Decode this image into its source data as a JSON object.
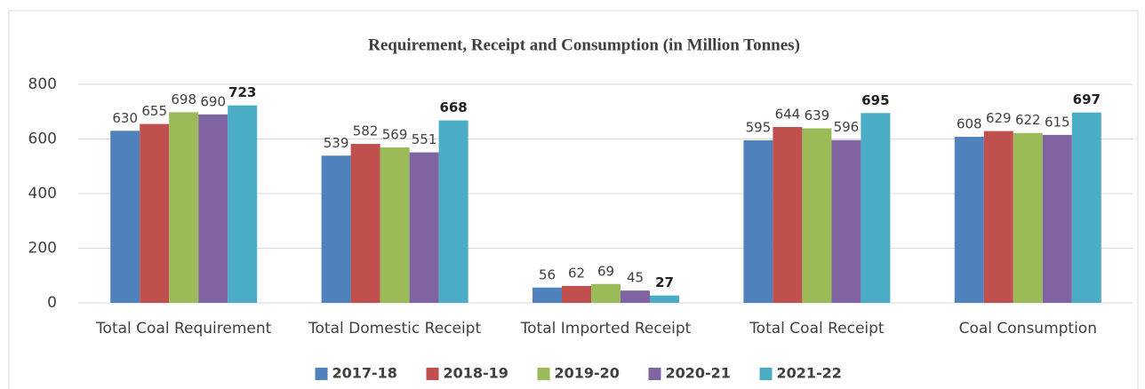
{
  "chart_data": {
    "type": "bar",
    "title": "Requirement, Receipt and Consumption (in Million Tonnes)",
    "categories": [
      "Total Coal Requirement",
      "Total Domestic Receipt",
      "Total Imported Receipt",
      "Total Coal Receipt",
      "Coal Consumption"
    ],
    "series": [
      {
        "name": "2017-18",
        "color": "#4f81bd",
        "values": [
          630,
          539,
          56,
          595,
          608
        ]
      },
      {
        "name": "2018-19",
        "color": "#c0504d",
        "values": [
          655,
          582,
          62,
          644,
          629
        ]
      },
      {
        "name": "2019-20",
        "color": "#9bbb59",
        "values": [
          698,
          569,
          69,
          639,
          622
        ]
      },
      {
        "name": "2020-21",
        "color": "#8064a2",
        "values": [
          690,
          551,
          45,
          596,
          615
        ]
      },
      {
        "name": "2021-22",
        "color": "#4bacc6",
        "values": [
          723,
          668,
          27,
          695,
          697
        ]
      }
    ],
    "ylim": [
      0,
      800
    ],
    "yticks": [
      0,
      200,
      400,
      600,
      800
    ],
    "grid": true,
    "legend": "bottom"
  }
}
